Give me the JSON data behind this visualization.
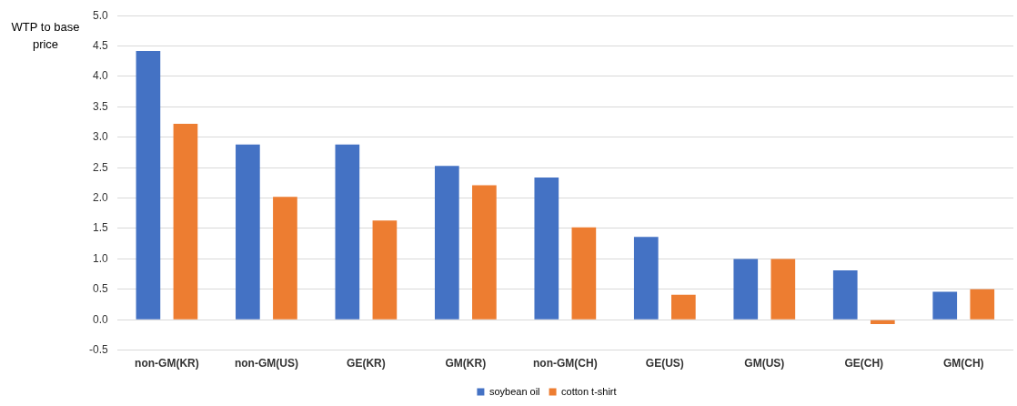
{
  "chart_data": {
    "type": "bar",
    "ylabel": "WTP to base price",
    "categories": [
      "non-GM(KR)",
      "non-GM(US)",
      "GE(KR)",
      "GM(KR)",
      "non-GM(CH)",
      "GE(US)",
      "GM(US)",
      "GE(CH)",
      "GM(CH)"
    ],
    "series": [
      {
        "name": "soybean oil",
        "color": "#4472c4",
        "values": [
          4.42,
          2.88,
          2.88,
          2.53,
          2.34,
          1.36,
          1.0,
          0.81,
          0.46
        ]
      },
      {
        "name": "cotton t-shirt",
        "color": "#ed7d31",
        "values": [
          3.22,
          2.02,
          1.63,
          2.21,
          1.52,
          0.41,
          1.0,
          -0.07,
          0.5
        ]
      }
    ],
    "ylim": [
      -0.5,
      5
    ],
    "yticks": [
      {
        "value": -0.5,
        "label": "-0.5"
      },
      {
        "value": 0,
        "label": "0.0"
      },
      {
        "value": 0.5,
        "label": "0.5"
      },
      {
        "value": 1,
        "label": "1.0"
      },
      {
        "value": 1.5,
        "label": "1.5"
      },
      {
        "value": 2,
        "label": "2.0"
      },
      {
        "value": 2.5,
        "label": "2.5"
      },
      {
        "value": 3,
        "label": "3.0"
      },
      {
        "value": 3.5,
        "label": "3.5"
      },
      {
        "value": 4,
        "label": "4.0"
      },
      {
        "value": 4.5,
        "label": "4.5"
      },
      {
        "value": 5,
        "label": "5.0"
      }
    ],
    "grid": "y",
    "legend": "bottom"
  }
}
